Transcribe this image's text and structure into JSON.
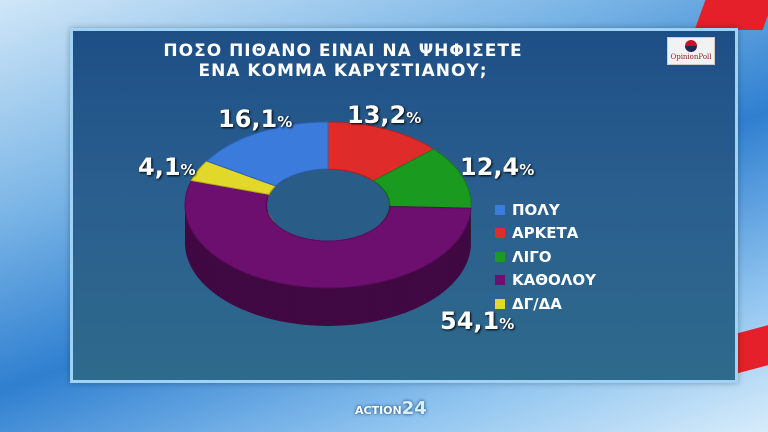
{
  "chart_data": {
    "type": "pie",
    "title": "ΠΟΣΟ ΠΙΘΑΝΟ ΕΙΝΑΙ ΝΑ ΨΗΦΙΣΕΤΕ ΕΝΑ ΚΟΜΜΑ ΚΑΡΥΣΤΙΑΝΟΥ;",
    "title_lines": [
      "ΠΟΣΟ ΠΙΘΑΝΟ ΕΙΝΑΙ ΝΑ ΨΗΦΙΣΕΤΕ",
      "ΕΝΑ ΚΟΜΜΑ ΚΑΡΥΣΤΙΑΝΟΥ;"
    ],
    "donut": true,
    "legend_position": "right",
    "unit": "%",
    "slices": [
      {
        "name": "ΠΟΛΥ",
        "value": 16.1,
        "label": "16,1",
        "color": "#3a7bdc"
      },
      {
        "name": "ΑΡΚΕΤΑ",
        "value": 13.2,
        "label": "13,2",
        "color": "#e02b2b"
      },
      {
        "name": "ΛΙΓΟ",
        "value": 12.4,
        "label": "12,4",
        "color": "#1a9a1f"
      },
      {
        "name": "ΚΑΘΟΛΟΥ",
        "value": 54.1,
        "label": "54,1",
        "color": "#6d0f6e"
      },
      {
        "name": "ΔΓ/ΔΑ",
        "value": 4.1,
        "label": "4,1",
        "color": "#e2d82a"
      }
    ]
  },
  "branding": {
    "pollster": "OpinionPoll",
    "channel": "ACTION",
    "channel_number": "24"
  }
}
